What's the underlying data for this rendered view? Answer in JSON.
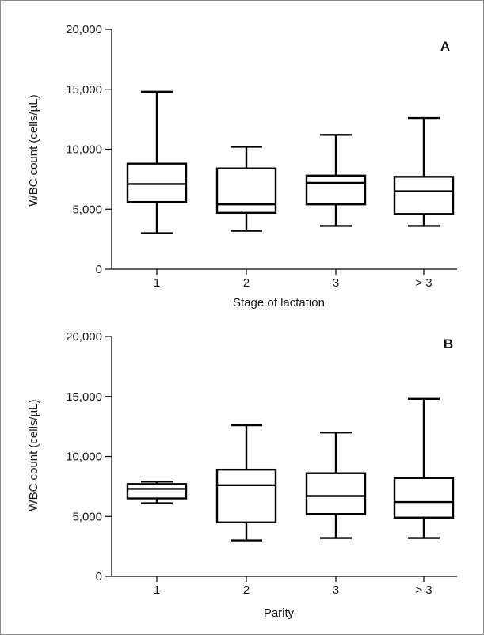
{
  "chart_data": [
    {
      "type": "boxplot",
      "panel_label": "A",
      "xlabel": "Stage of lactation",
      "ylabel": "WBC count (cells/µL)",
      "ylim": [
        0,
        20000
      ],
      "yticks": [
        0,
        5000,
        10000,
        15000,
        20000
      ],
      "ytick_labels": [
        "0",
        "5,000",
        "10,000",
        "15,000",
        "20,000"
      ],
      "categories": [
        "1",
        "2",
        "3",
        "> 3"
      ],
      "boxes": [
        {
          "min": 3000,
          "q1": 5600,
          "median": 7100,
          "q3": 8800,
          "max": 14800
        },
        {
          "min": 3200,
          "q1": 4700,
          "median": 5400,
          "q3": 8400,
          "max": 10200
        },
        {
          "min": 3600,
          "q1": 5400,
          "median": 7200,
          "q3": 7800,
          "max": 11200
        },
        {
          "min": 3600,
          "q1": 4600,
          "median": 6500,
          "q3": 7700,
          "max": 12600
        }
      ]
    },
    {
      "type": "boxplot",
      "panel_label": "B",
      "xlabel": "Parity",
      "ylabel": "WBC count (cells/µL)",
      "ylim": [
        0,
        20000
      ],
      "yticks": [
        0,
        5000,
        10000,
        15000,
        20000
      ],
      "ytick_labels": [
        "0",
        "5,000",
        "10,000",
        "15,000",
        "20,000"
      ],
      "categories": [
        "1",
        "2",
        "3",
        "> 3"
      ],
      "boxes": [
        {
          "min": 6100,
          "q1": 6500,
          "median": 7300,
          "q3": 7700,
          "max": 7900
        },
        {
          "min": 3000,
          "q1": 4500,
          "median": 7600,
          "q3": 8900,
          "max": 12600
        },
        {
          "min": 3200,
          "q1": 5200,
          "median": 6700,
          "q3": 8600,
          "max": 12000
        },
        {
          "min": 3200,
          "q1": 4900,
          "median": 6200,
          "q3": 8200,
          "max": 14800
        }
      ]
    }
  ]
}
